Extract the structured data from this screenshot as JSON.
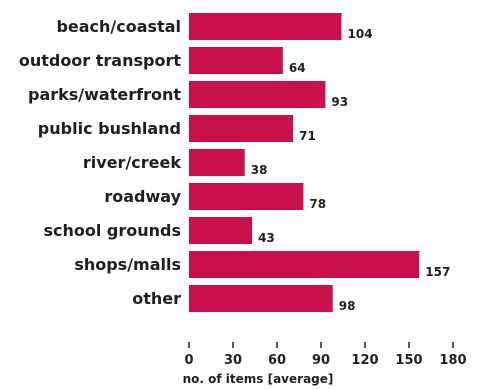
{
  "chart_data": {
    "type": "bar",
    "orientation": "horizontal",
    "categories": [
      "beach/coastal",
      "outdoor transport",
      "parks/waterfront",
      "public bushland",
      "river/creek",
      "roadway",
      "school grounds",
      "shops/malls",
      "other"
    ],
    "values": [
      104,
      64,
      93,
      71,
      38,
      78,
      43,
      157,
      98
    ],
    "title": "",
    "xlabel": "no. of items [average]",
    "ylabel": "",
    "xlim": [
      0,
      180
    ],
    "xticks": [
      0,
      30,
      60,
      90,
      120,
      150,
      180
    ],
    "grid": false,
    "legend": "none",
    "bar_color": "#c8104a",
    "text_color": "#1f1f1f"
  }
}
